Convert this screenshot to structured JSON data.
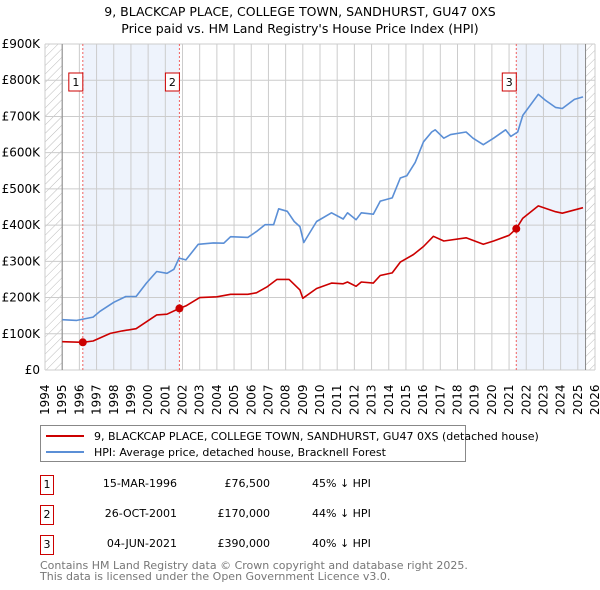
{
  "chart_data": {
    "type": "line",
    "title": "9, BLACKCAP PLACE, COLLEGE TOWN, SANDHURST, GU47 0XS",
    "subtitle": "Price paid vs. HM Land Registry's House Price Index (HPI)",
    "xlim": [
      1994,
      2026
    ],
    "ylim": [
      0,
      900000
    ],
    "x_ticks": [
      "1994",
      "1995",
      "1996",
      "1997",
      "1998",
      "1999",
      "2000",
      "2001",
      "2002",
      "2003",
      "2004",
      "2005",
      "2006",
      "2007",
      "2008",
      "2009",
      "2010",
      "2011",
      "2012",
      "2013",
      "2014",
      "2015",
      "2016",
      "2017",
      "2018",
      "2019",
      "2020",
      "2021",
      "2022",
      "2023",
      "2024",
      "2025",
      "2026"
    ],
    "y_ticks": [
      {
        "v": 0,
        "label": "£0"
      },
      {
        "v": 100000,
        "label": "£100K"
      },
      {
        "v": 200000,
        "label": "£200K"
      },
      {
        "v": 300000,
        "label": "£300K"
      },
      {
        "v": 400000,
        "label": "£400K"
      },
      {
        "v": 500000,
        "label": "£500K"
      },
      {
        "v": 600000,
        "label": "£600K"
      },
      {
        "v": 700000,
        "label": "£700K"
      },
      {
        "v": 800000,
        "label": "£800K"
      },
      {
        "v": 900000,
        "label": "£900K"
      }
    ],
    "grid": true,
    "data_range": [
      1995,
      2025.45
    ],
    "shaded_ranges": [
      [
        1996.2,
        2001.82
      ],
      [
        2021.42,
        2025.45
      ]
    ],
    "series": [
      {
        "name": "9, BLACKCAP PLACE, COLLEGE TOWN, SANDHURST, GU47 0XS (detached house)",
        "color": "#cc0000",
        "points": [
          [
            1995,
            78000
          ],
          [
            1996.2,
            76500
          ],
          [
            1996.8,
            80000
          ],
          [
            1997.8,
            101000
          ],
          [
            1998.5,
            108000
          ],
          [
            1999.3,
            114000
          ],
          [
            1999.9,
            133000
          ],
          [
            2000.5,
            152000
          ],
          [
            2001.1,
            154000
          ],
          [
            2001.82,
            170000
          ],
          [
            2002.2,
            177000
          ],
          [
            2003.0,
            200000
          ],
          [
            2004.0,
            202000
          ],
          [
            2004.8,
            209000
          ],
          [
            2005.8,
            209000
          ],
          [
            2006.3,
            213000
          ],
          [
            2006.9,
            229000
          ],
          [
            2007.5,
            250000
          ],
          [
            2008.2,
            250000
          ],
          [
            2008.83,
            221000
          ],
          [
            2009.0,
            198000
          ],
          [
            2009.8,
            225000
          ],
          [
            2010.67,
            240000
          ],
          [
            2011.35,
            238000
          ],
          [
            2011.6,
            243000
          ],
          [
            2012.1,
            231000
          ],
          [
            2012.4,
            243000
          ],
          [
            2013.1,
            240000
          ],
          [
            2013.5,
            261000
          ],
          [
            2014.2,
            268000
          ],
          [
            2014.67,
            298000
          ],
          [
            2015.44,
            319000
          ],
          [
            2016.02,
            341000
          ],
          [
            2016.6,
            369000
          ],
          [
            2017.2,
            356000
          ],
          [
            2018.5,
            365000
          ],
          [
            2019.5,
            347000
          ],
          [
            2020.1,
            356000
          ],
          [
            2021.0,
            372000
          ],
          [
            2021.42,
            390000
          ],
          [
            2021.8,
            419000
          ],
          [
            2022.7,
            453000
          ],
          [
            2023.7,
            437000
          ],
          [
            2024.1,
            433000
          ],
          [
            2025.3,
            448000
          ]
        ]
      },
      {
        "name": "HPI: Average price, detached house, Bracknell Forest",
        "color": "#5b8fd6",
        "points": [
          [
            1995,
            139000
          ],
          [
            1995.85,
            137000
          ],
          [
            1996.8,
            146000
          ],
          [
            1997.2,
            162000
          ],
          [
            1998.0,
            187000
          ],
          [
            1998.7,
            203000
          ],
          [
            1999.3,
            203000
          ],
          [
            1999.9,
            240000
          ],
          [
            2000.5,
            272000
          ],
          [
            2001.1,
            267000
          ],
          [
            2001.5,
            278000
          ],
          [
            2001.8,
            309000
          ],
          [
            2002.2,
            304000
          ],
          [
            2002.92,
            347000
          ],
          [
            2003.8,
            351000
          ],
          [
            2004.4,
            350000
          ],
          [
            2004.8,
            368000
          ],
          [
            2005.8,
            366000
          ],
          [
            2006.3,
            382000
          ],
          [
            2006.8,
            401000
          ],
          [
            2007.3,
            401000
          ],
          [
            2007.6,
            445000
          ],
          [
            2008.1,
            438000
          ],
          [
            2008.5,
            410000
          ],
          [
            2008.83,
            396000
          ],
          [
            2009.06,
            352000
          ],
          [
            2009.8,
            410000
          ],
          [
            2010.67,
            434000
          ],
          [
            2011.35,
            417000
          ],
          [
            2011.6,
            434000
          ],
          [
            2012.1,
            415000
          ],
          [
            2012.4,
            434000
          ],
          [
            2013.1,
            430000
          ],
          [
            2013.5,
            466000
          ],
          [
            2014.2,
            475000
          ],
          [
            2014.67,
            530000
          ],
          [
            2015.05,
            536000
          ],
          [
            2015.54,
            573000
          ],
          [
            2016.02,
            630000
          ],
          [
            2016.5,
            657000
          ],
          [
            2016.7,
            663000
          ],
          [
            2017.2,
            640000
          ],
          [
            2017.6,
            650000
          ],
          [
            2018.5,
            657000
          ],
          [
            2018.9,
            640000
          ],
          [
            2019.5,
            622000
          ],
          [
            2020.1,
            640000
          ],
          [
            2020.8,
            663000
          ],
          [
            2021.1,
            645000
          ],
          [
            2021.5,
            657000
          ],
          [
            2021.8,
            703000
          ],
          [
            2022.7,
            761000
          ],
          [
            2023.1,
            745000
          ],
          [
            2023.7,
            725000
          ],
          [
            2024.1,
            722000
          ],
          [
            2024.8,
            747000
          ],
          [
            2025.3,
            754000
          ]
        ]
      }
    ],
    "sales": [
      {
        "label": "1",
        "x": 1996.2,
        "y": 76500,
        "date": "15-MAR-1996",
        "price": "£76,500",
        "hpi": "45% ↓ HPI"
      },
      {
        "label": "2",
        "x": 2001.82,
        "y": 170000,
        "date": "26-OCT-2001",
        "price": "£170,000",
        "hpi": "44% ↓ HPI"
      },
      {
        "label": "3",
        "x": 2021.42,
        "y": 390000,
        "date": "04-JUN-2021",
        "price": "£390,000",
        "hpi": "40% ↓ HPI"
      }
    ]
  },
  "legend": {
    "items": [
      {
        "label": "9, BLACKCAP PLACE, COLLEGE TOWN, SANDHURST, GU47 0XS (detached house)",
        "color": "#cc0000"
      },
      {
        "label": "HPI: Average price, detached house, Bracknell Forest",
        "color": "#5b8fd6"
      }
    ]
  },
  "footer": {
    "line1": "Contains HM Land Registry data © Crown copyright and database right 2025.",
    "line2": "This data is licensed under the Open Government Licence v3.0."
  }
}
